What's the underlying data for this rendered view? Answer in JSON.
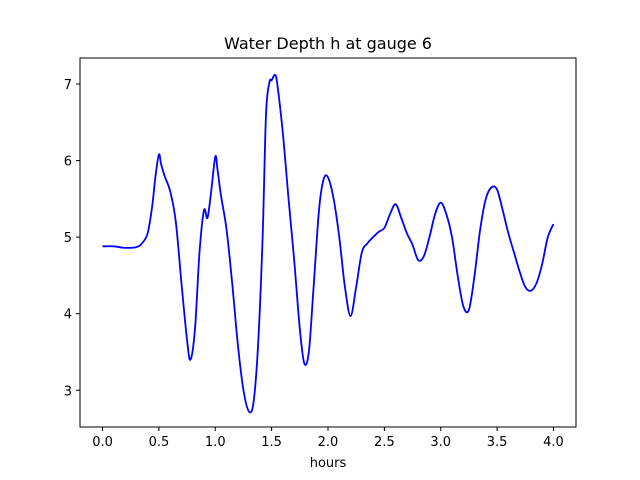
{
  "chart_data": {
    "type": "line",
    "title": "Water Depth h at gauge 6",
    "xlabel": "hours",
    "ylabel": "",
    "xlim": [
      -0.2,
      4.2
    ],
    "ylim": [
      2.52,
      7.34
    ],
    "xticks": [
      0.0,
      0.5,
      1.0,
      1.5,
      2.0,
      2.5,
      3.0,
      3.5,
      4.0
    ],
    "xtick_labels": [
      "0.0",
      "0.5",
      "1.0",
      "1.5",
      "2.0",
      "2.5",
      "3.0",
      "3.5",
      "4.0"
    ],
    "yticks": [
      3,
      4,
      5,
      6,
      7
    ],
    "ytick_labels": [
      "3",
      "4",
      "5",
      "6",
      "7"
    ],
    "grid": false,
    "series": [
      {
        "color": "#0000ff",
        "x": [
          0.0,
          0.1,
          0.2,
          0.3,
          0.35,
          0.4,
          0.44,
          0.47,
          0.5,
          0.52,
          0.55,
          0.6,
          0.65,
          0.7,
          0.75,
          0.78,
          0.82,
          0.86,
          0.9,
          0.93,
          0.96,
          1.0,
          1.02,
          1.05,
          1.1,
          1.15,
          1.2,
          1.25,
          1.3,
          1.34,
          1.38,
          1.42,
          1.45,
          1.48,
          1.5,
          1.53,
          1.55,
          1.6,
          1.65,
          1.7,
          1.75,
          1.79,
          1.83,
          1.87,
          1.92,
          1.96,
          2.0,
          2.05,
          2.1,
          2.15,
          2.2,
          2.25,
          2.3,
          2.35,
          2.4,
          2.45,
          2.5,
          2.55,
          2.6,
          2.65,
          2.7,
          2.75,
          2.8,
          2.85,
          2.9,
          2.95,
          3.0,
          3.05,
          3.1,
          3.15,
          3.2,
          3.25,
          3.3,
          3.35,
          3.4,
          3.45,
          3.5,
          3.55,
          3.6,
          3.65,
          3.7,
          3.75,
          3.8,
          3.85,
          3.9,
          3.95,
          4.0
        ],
        "y": [
          4.88,
          4.88,
          4.86,
          4.87,
          4.92,
          5.05,
          5.4,
          5.8,
          6.08,
          5.95,
          5.8,
          5.6,
          5.2,
          4.4,
          3.65,
          3.4,
          3.8,
          4.8,
          5.35,
          5.25,
          5.55,
          6.05,
          5.88,
          5.55,
          5.1,
          4.4,
          3.6,
          3.0,
          2.72,
          2.85,
          3.6,
          5.0,
          6.6,
          7.02,
          7.05,
          7.12,
          7.0,
          6.35,
          5.5,
          4.7,
          3.8,
          3.35,
          3.5,
          4.3,
          5.35,
          5.75,
          5.78,
          5.5,
          5.0,
          4.35,
          3.97,
          4.35,
          4.8,
          4.92,
          5.0,
          5.07,
          5.12,
          5.3,
          5.43,
          5.25,
          5.05,
          4.9,
          4.7,
          4.75,
          5.0,
          5.3,
          5.45,
          5.3,
          5.0,
          4.5,
          4.1,
          4.05,
          4.5,
          5.1,
          5.5,
          5.65,
          5.62,
          5.35,
          5.05,
          4.8,
          4.55,
          4.35,
          4.3,
          4.4,
          4.65,
          5.0,
          5.17
        ]
      }
    ]
  }
}
